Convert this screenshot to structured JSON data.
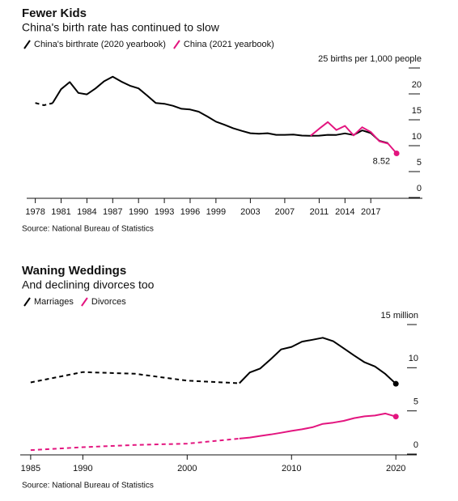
{
  "chart_data": [
    {
      "type": "line",
      "title": "Fewer Kids",
      "subtitle": "China's birth rate has continued to slow",
      "source": "Source: National Bureau of Statistics",
      "xlim": [
        1977,
        2023
      ],
      "xticks": [
        1978,
        1981,
        1984,
        1987,
        1990,
        1993,
        1996,
        1999,
        2003,
        2007,
        2011,
        2014,
        2017
      ],
      "ylim": [
        0,
        25
      ],
      "yticks": [
        0,
        5,
        10,
        15,
        20,
        {
          "value": 25,
          "label": "25 births per 1,000 people"
        }
      ],
      "series": [
        {
          "name": "China's birthrate (2020 yearbook)",
          "color": "#000000",
          "dashed_through": 1980,
          "x": [
            1978,
            1979,
            1980,
            1981,
            1982,
            1983,
            1984,
            1985,
            1986,
            1987,
            1988,
            1989,
            1990,
            1991,
            1992,
            1993,
            1994,
            1995,
            1996,
            1997,
            1998,
            1999,
            2000,
            2001,
            2002,
            2003,
            2004,
            2005,
            2006,
            2007,
            2008,
            2009,
            2010,
            2011,
            2012,
            2013,
            2014,
            2015,
            2016,
            2017,
            2018,
            2019
          ],
          "values": [
            18.25,
            17.82,
            18.21,
            20.91,
            22.28,
            20.19,
            19.9,
            21.04,
            22.43,
            23.33,
            22.37,
            21.58,
            21.06,
            19.68,
            18.24,
            18.09,
            17.7,
            17.12,
            16.98,
            16.57,
            15.64,
            14.64,
            14.03,
            13.38,
            12.86,
            12.41,
            12.29,
            12.4,
            12.09,
            12.1,
            12.14,
            11.95,
            11.9,
            11.93,
            12.1,
            12.08,
            12.37,
            12.07,
            12.95,
            12.43,
            10.94,
            10.48
          ]
        },
        {
          "name": "China (2021 yearbook)",
          "color": "#e3157f",
          "end_dot": true,
          "end_label": true,
          "x": [
            2010,
            2011,
            2012,
            2013,
            2014,
            2015,
            2016,
            2017,
            2018,
            2019,
            2020
          ],
          "values": [
            11.9,
            13.27,
            14.57,
            13.03,
            13.83,
            11.99,
            13.57,
            12.64,
            10.86,
            10.41,
            8.52
          ]
        }
      ]
    },
    {
      "type": "line",
      "title": "Waning Weddings",
      "subtitle": "And declining divorces too",
      "source": "Source: National Bureau of Statistics",
      "xlim": [
        1984,
        2022
      ],
      "xticks": [
        1985,
        1990,
        2000,
        2010,
        2020
      ],
      "ylim": [
        0,
        15
      ],
      "yticks": [
        0,
        5,
        10,
        {
          "value": 15,
          "label": "15 million"
        }
      ],
      "series": [
        {
          "name": "Marriages",
          "color": "#000000",
          "dashed_through": 2005,
          "end_dot": true,
          "x": [
            1985,
            1990,
            1995,
            2000,
            2005,
            2006,
            2007,
            2008,
            2009,
            2010,
            2011,
            2012,
            2013,
            2014,
            2015,
            2016,
            2017,
            2018,
            2019,
            2020
          ],
          "values": [
            8.3,
            9.5,
            9.3,
            8.5,
            8.2,
            9.45,
            9.91,
            10.98,
            12.12,
            12.41,
            13.02,
            13.24,
            13.47,
            13.07,
            12.25,
            11.42,
            10.63,
            10.14,
            9.27,
            8.14
          ]
        },
        {
          "name": "Divorces",
          "color": "#e3157f",
          "dashed_through": 2005,
          "end_dot": true,
          "x": [
            1985,
            1990,
            1995,
            2000,
            2005,
            2006,
            2007,
            2008,
            2009,
            2010,
            2011,
            2012,
            2013,
            2014,
            2015,
            2016,
            2017,
            2018,
            2019,
            2020
          ],
          "values": [
            0.46,
            0.8,
            1.05,
            1.21,
            1.79,
            1.91,
            2.1,
            2.27,
            2.47,
            2.68,
            2.87,
            3.1,
            3.5,
            3.64,
            3.84,
            4.16,
            4.37,
            4.46,
            4.7,
            4.34
          ]
        }
      ]
    }
  ]
}
